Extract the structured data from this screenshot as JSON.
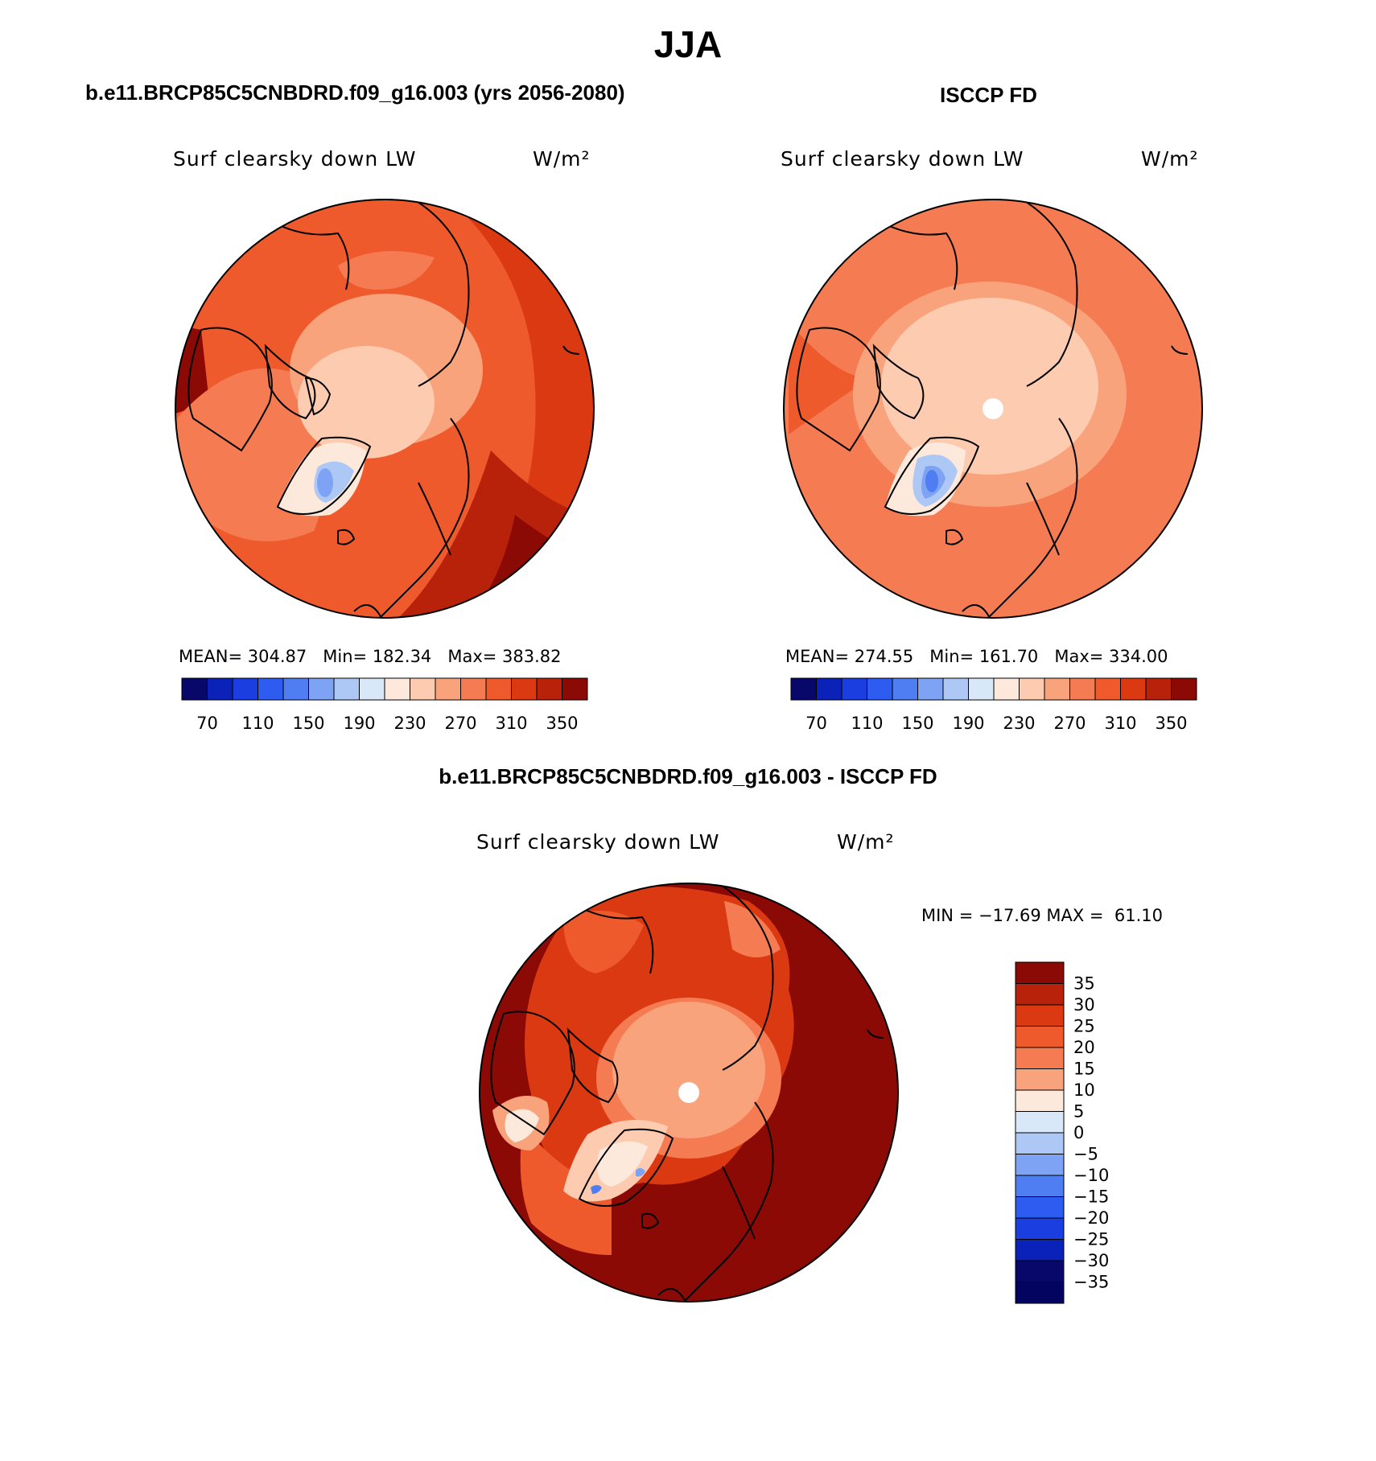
{
  "figure": {
    "title": "JJA"
  },
  "panels": [
    {
      "id": "model",
      "title": "b.e11.BRCP85C5CNBDRD.f09_g16.003 (yrs 2056-2080)",
      "variable": "Surf clearsky down LW",
      "units": "W/m²",
      "stats": {
        "mean_label": "MEAN=",
        "mean": "304.87",
        "min_label": "Min=",
        "min": "182.34",
        "max_label": "Max=",
        "max": "383.82"
      },
      "pole_hole": false
    },
    {
      "id": "obs",
      "title": "ISCCP FD",
      "variable": "Surf clearsky down LW",
      "units": "W/m²",
      "stats": {
        "mean_label": "MEAN=",
        "mean": "274.55",
        "min_label": "Min=",
        "min": "161.70",
        "max_label": "Max=",
        "max": "334.00"
      },
      "pole_hole": true
    },
    {
      "id": "diff",
      "title": "b.e11.BRCP85C5CNBDRD.f09_g16.003 - ISCCP FD",
      "variable": "Surf clearsky down LW",
      "units": "W/m²",
      "stats": {
        "min_label": "MIN =",
        "min": "−17.69",
        "max_label": "MAX =",
        "max": "61.10"
      },
      "pole_hole": true
    }
  ],
  "colorbars": {
    "absolute": {
      "colors": [
        "#08086b",
        "#0a22b8",
        "#1a3ee0",
        "#2e5cf0",
        "#4f7ef2",
        "#7ea3f4",
        "#aec8f6",
        "#d8e8f9",
        "#fde8dc",
        "#fccbb0",
        "#f9a37d",
        "#f57c52",
        "#ef5a2c",
        "#da3912",
        "#b8220a",
        "#8c0a05"
      ],
      "tick_labels": [
        "70",
        "110",
        "150",
        "190",
        "230",
        "270",
        "310",
        "350"
      ]
    },
    "difference": {
      "colors": [
        "#8c0a05",
        "#b8220a",
        "#da3912",
        "#ef5a2c",
        "#f57c52",
        "#f9a37d",
        "#fde8dc",
        "#d8e8f9",
        "#aec8f6",
        "#7ea3f4",
        "#4f7ef2",
        "#2e5cf0",
        "#1a3ee0",
        "#0a22b8",
        "#08086b",
        "#030360"
      ],
      "tick_labels": [
        "35",
        "30",
        "25",
        "20",
        "15",
        "10",
        "5",
        "0",
        "−5",
        "−10",
        "−15",
        "−20",
        "−25",
        "−30",
        "−35"
      ]
    }
  }
}
